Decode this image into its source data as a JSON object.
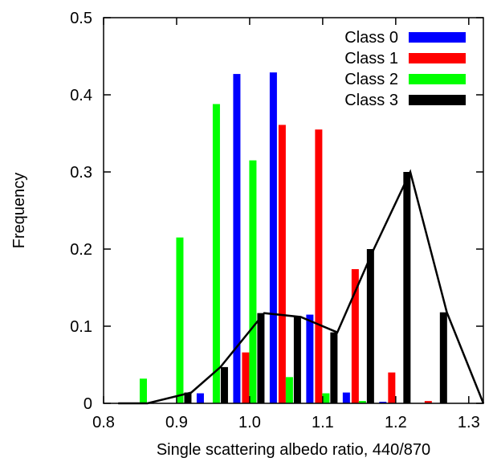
{
  "chart_data": {
    "type": "bar",
    "title": "",
    "xlabel": "Single scattering albedo ratio, 440/870",
    "ylabel": "Frequency",
    "xlim": [
      0.8,
      1.32
    ],
    "ylim": [
      0,
      0.5
    ],
    "xticks": [
      0.8,
      0.9,
      1.0,
      1.1,
      1.2,
      1.3
    ],
    "xtick_labels": [
      "0.8",
      "0.9",
      "1.0",
      "1.1",
      "1.2",
      "1.3"
    ],
    "yticks": [
      0,
      0.1,
      0.2,
      0.3,
      0.4,
      0.5
    ],
    "ytick_labels": [
      "0",
      "0.1",
      "0.2",
      "0.3",
      "0.4",
      "0.5"
    ],
    "grid": false,
    "legend_position": "top-right",
    "bin_centers": [
      0.85,
      0.9,
      0.95,
      1.0,
      1.05,
      1.1,
      1.15,
      1.2,
      1.25,
      1.3
    ],
    "series": [
      {
        "name": "Class 0",
        "color": "#0000ff",
        "values": [
          0.0,
          0.0,
          0.013,
          0.427,
          0.429,
          0.115,
          0.014,
          0.002,
          0.0,
          0.0
        ]
      },
      {
        "name": "Class 1",
        "color": "#ff0000",
        "values": [
          0.0,
          0.0,
          0.0,
          0.066,
          0.361,
          0.355,
          0.174,
          0.04,
          0.003,
          0.0
        ]
      },
      {
        "name": "Class 2",
        "color": "#00ff00",
        "values": [
          0.032,
          0.215,
          0.388,
          0.315,
          0.034,
          0.013,
          0.003,
          0.0,
          0.0,
          0.0
        ]
      },
      {
        "name": "Class 3",
        "color": "#000000",
        "values": [
          0.0,
          0.014,
          0.047,
          0.117,
          0.112,
          0.092,
          0.2,
          0.3,
          0.118,
          0.0
        ]
      }
    ],
    "line_series": {
      "color": "#000000",
      "x": [
        0.82,
        0.86,
        0.92,
        0.96,
        1.02,
        1.07,
        1.12,
        1.17,
        1.22,
        1.27,
        1.32
      ],
      "y": [
        0.0,
        0.0,
        0.014,
        0.047,
        0.117,
        0.112,
        0.092,
        0.2,
        0.3,
        0.118,
        0.0
      ]
    }
  }
}
